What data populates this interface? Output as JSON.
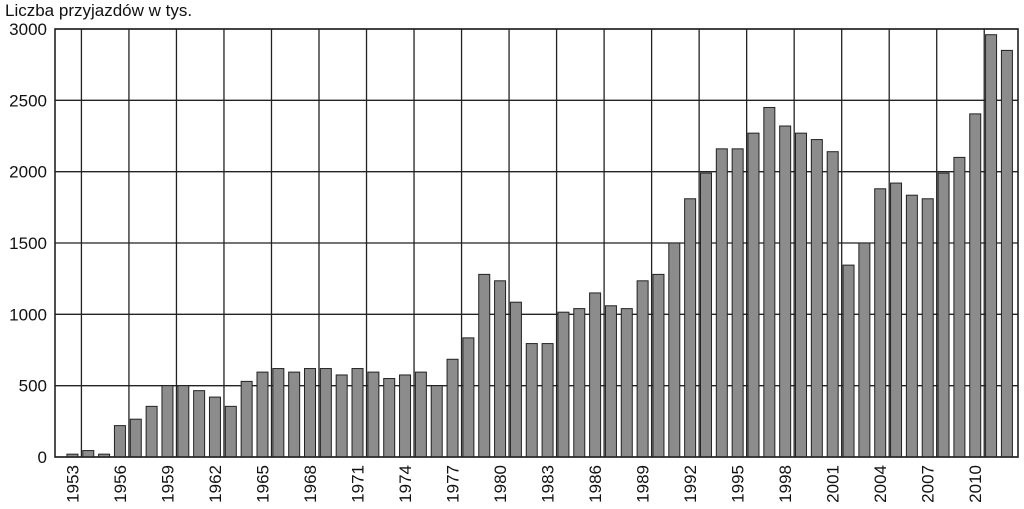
{
  "chart_data": {
    "type": "bar",
    "y_label": "Liczba przyjazdów w tys.",
    "x": [
      1953,
      1954,
      1955,
      1956,
      1957,
      1958,
      1959,
      1960,
      1961,
      1962,
      1963,
      1964,
      1965,
      1966,
      1967,
      1968,
      1969,
      1970,
      1971,
      1972,
      1973,
      1974,
      1975,
      1976,
      1977,
      1978,
      1979,
      1980,
      1981,
      1982,
      1983,
      1984,
      1985,
      1986,
      1987,
      1988,
      1989,
      1990,
      1991,
      1992,
      1993,
      1994,
      1995,
      1996,
      1997,
      1998,
      1999,
      2000,
      2001,
      2002,
      2003,
      2004,
      2005,
      2006,
      2007,
      2008,
      2009,
      2010,
      2011,
      2012
    ],
    "values": [
      20,
      45,
      20,
      220,
      265,
      355,
      500,
      500,
      465,
      420,
      355,
      530,
      595,
      620,
      595,
      620,
      620,
      575,
      620,
      595,
      550,
      575,
      595,
      500,
      685,
      835,
      1280,
      1235,
      1085,
      795,
      795,
      1015,
      1040,
      1150,
      1060,
      1040,
      1235,
      1280,
      1500,
      1810,
      1990,
      2160,
      2160,
      2270,
      2450,
      2320,
      2270,
      2225,
      2140,
      1345,
      1500,
      1880,
      1920,
      1835,
      1810,
      1990,
      2100,
      2405,
      2960,
      2850
    ],
    "color": "#8c8c8c",
    "xlim": [
      1951.9,
      2012.7
    ],
    "xticks": [
      1953,
      1956,
      1959,
      1962,
      1965,
      1968,
      1971,
      1974,
      1977,
      1980,
      1983,
      1986,
      1989,
      1992,
      1995,
      1998,
      2001,
      2004,
      2007,
      2010
    ],
    "ylim": [
      0,
      3000
    ],
    "yticks": [
      0,
      500,
      1000,
      1500,
      2000,
      2500,
      3000
    ],
    "grid": true
  }
}
